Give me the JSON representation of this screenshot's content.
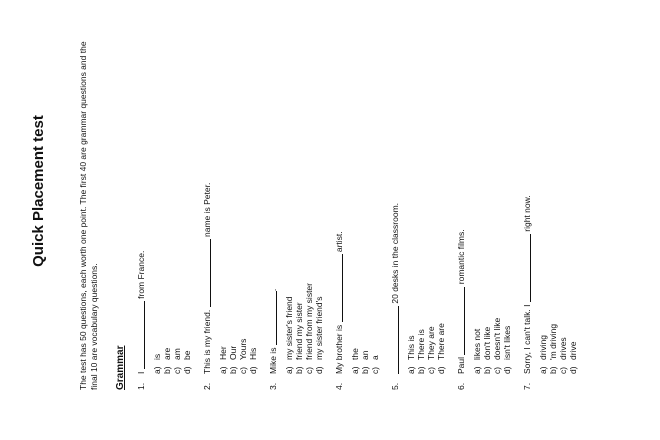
{
  "title": "Quick Placement test",
  "intro_line1": "The test has 50 questions, each worth one point. The first 40 are grammar questions and the",
  "intro_line2": "final 10 are vocabulary questions.",
  "section": "Grammar",
  "questions": [
    {
      "num": "1.",
      "before": "I",
      "after": "from France.",
      "options": [
        {
          "letter": "a)",
          "text": "is"
        },
        {
          "letter": "b)",
          "text": "are"
        },
        {
          "letter": "c)",
          "text": "am"
        },
        {
          "letter": "d)",
          "text": "be"
        }
      ]
    },
    {
      "num": "2.",
      "before": "This is my friend.",
      "after": "name is Peter.",
      "options": [
        {
          "letter": "a)",
          "text": "Her"
        },
        {
          "letter": "b)",
          "text": "Our"
        },
        {
          "letter": "c)",
          "text": "Yours"
        },
        {
          "letter": "d)",
          "text": "His"
        }
      ]
    },
    {
      "num": "3.",
      "before": "Mike is",
      "after": ".",
      "options": [
        {
          "letter": "a)",
          "text": "my sister's friend"
        },
        {
          "letter": "b)",
          "text": "friend my sister"
        },
        {
          "letter": "c)",
          "text": "friend from my sister"
        },
        {
          "letter": "d)",
          "text": "my sister friend's"
        }
      ]
    },
    {
      "num": "4.",
      "before": "My brother is",
      "after": "artist.",
      "options": [
        {
          "letter": "a)",
          "text": "the"
        },
        {
          "letter": "b)",
          "text": "an"
        },
        {
          "letter": "c)",
          "text": "a"
        }
      ]
    },
    {
      "num": "5.",
      "before": "",
      "after": "20 desks in the classroom.",
      "options": [
        {
          "letter": "a)",
          "text": "This is"
        },
        {
          "letter": "b)",
          "text": "There is"
        },
        {
          "letter": "c)",
          "text": "They are"
        },
        {
          "letter": "d)",
          "text": "There are"
        }
      ]
    },
    {
      "num": "6.",
      "before": "Paul",
      "after": "romantic films.",
      "options": [
        {
          "letter": "a)",
          "text": "likes not"
        },
        {
          "letter": "b)",
          "text": "don't like"
        },
        {
          "letter": "c)",
          "text": "doesn't like"
        },
        {
          "letter": "d)",
          "text": "isn't likes"
        }
      ]
    },
    {
      "num": "7.",
      "before": "Sorry, I can't talk. I",
      "after": "right now.",
      "options": [
        {
          "letter": "a)",
          "text": "driving"
        },
        {
          "letter": "b)",
          "text": "'m driving"
        },
        {
          "letter": "c)",
          "text": "drives"
        },
        {
          "letter": "d)",
          "text": "drive"
        }
      ]
    }
  ]
}
